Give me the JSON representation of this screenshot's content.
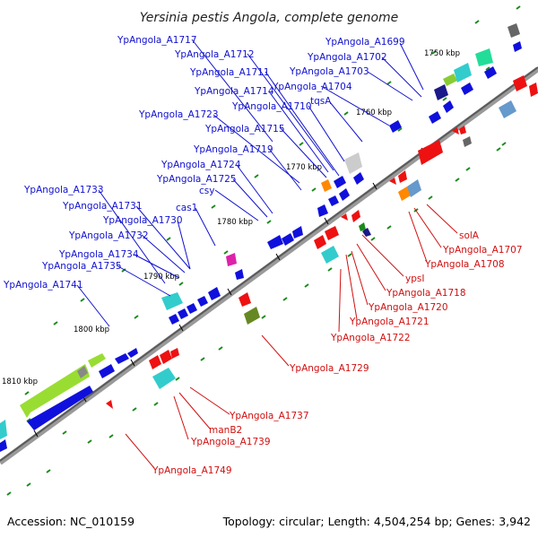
{
  "title": "Yersinia pestis Angola, complete genome",
  "footer": {
    "accession": "Accession: NC_010159",
    "summary": "Topology: circular; Length: 4,504,254 bp; Genes: 3,942"
  },
  "colors": {
    "backbone": "#777777",
    "forward_label": "#1010d0",
    "reverse_label": "#d01010",
    "tick": "#1a8a1a"
  },
  "ticks": [
    "1750 kbp",
    "1760 kbp",
    "1770 kbp",
    "1780 kbp",
    "1790 kbp",
    "1800 kbp",
    "1810 kbp"
  ],
  "forward_labels": [
    "YpAngola_A1717",
    "YpAngola_A1712",
    "YpAngola_A1711",
    "YpAngola_A1714",
    "YpAngola_A1710",
    "YpAngola_A1723",
    "YpAngola_A1715",
    "YpAngola_A1719",
    "YpAngola_A1724",
    "YpAngola_A1725",
    "csy",
    "cas1",
    "YpAngola_A1733",
    "YpAngola_A1731",
    "YpAngola_A1730",
    "YpAngola_A1732",
    "YpAngola_A1734",
    "YpAngola_A1735",
    "YpAngola_A1741",
    "YpAngola_A1699",
    "YpAngola_A1702",
    "YpAngola_A1703",
    "YpAngola_A1704",
    "tqsA"
  ],
  "reverse_labels": [
    "solA",
    "YpAngola_A1707",
    "YpAngola_A1708",
    "ypsI",
    "YpAngola_A1718",
    "YpAngola_A1720",
    "YpAngola_A1721",
    "YpAngola_A1722",
    "YpAngola_A1729",
    "YpAngola_A1737",
    "manB2",
    "YpAngola_A1739",
    "YpAngola_A1749"
  ]
}
